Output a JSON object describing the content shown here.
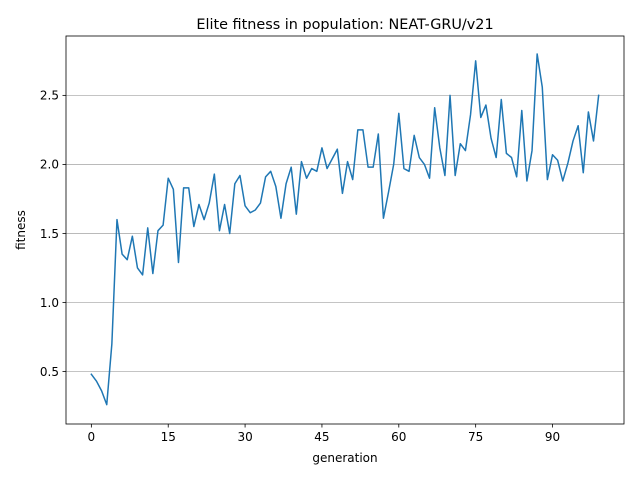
{
  "chart_data": {
    "type": "line",
    "title": "Elite fitness in population: NEAT-GRU/v21",
    "xlabel": "generation",
    "ylabel": "fitness",
    "xlim": [
      -4.95,
      103.95
    ],
    "ylim": [
      0.12,
      2.93
    ],
    "xticks": [
      0,
      15,
      30,
      45,
      60,
      75,
      90
    ],
    "yticks": [
      0.5,
      1.0,
      1.5,
      2.0,
      2.5
    ],
    "ytick_labels": [
      "0.5",
      "1.0",
      "1.5",
      "2.0",
      "2.5"
    ],
    "grid": "horizontal",
    "colors": {
      "series": "#1f77b4"
    },
    "series": [
      {
        "x": [
          0,
          1,
          2,
          3,
          4,
          5,
          6,
          7,
          8,
          9,
          10,
          11,
          12,
          13,
          14,
          15,
          16,
          17,
          18,
          19,
          20,
          21,
          22,
          23,
          24,
          25,
          26,
          27,
          28,
          29,
          30,
          31,
          32,
          33,
          34,
          35,
          36,
          37,
          38,
          39,
          40,
          41,
          42,
          43,
          44,
          45,
          46,
          47,
          48,
          49,
          50,
          51,
          52,
          53,
          54,
          55,
          56,
          57,
          58,
          59,
          60,
          61,
          62,
          63,
          64,
          65,
          66,
          67,
          68,
          69,
          70,
          71,
          72,
          73,
          74,
          75,
          76,
          77,
          78,
          79,
          80,
          81,
          82,
          83,
          84,
          85,
          86,
          87,
          88,
          89,
          90,
          91,
          92,
          93,
          94,
          95,
          96,
          97,
          98,
          99
        ],
        "values": [
          0.48,
          0.43,
          0.36,
          0.26,
          0.7,
          1.6,
          1.35,
          1.31,
          1.48,
          1.25,
          1.2,
          1.54,
          1.21,
          1.52,
          1.56,
          1.9,
          1.82,
          1.29,
          1.83,
          1.83,
          1.55,
          1.71,
          1.6,
          1.72,
          1.93,
          1.52,
          1.71,
          1.5,
          1.86,
          1.92,
          1.7,
          1.65,
          1.67,
          1.72,
          1.91,
          1.95,
          1.84,
          1.61,
          1.86,
          1.98,
          1.64,
          2.02,
          1.9,
          1.97,
          1.95,
          2.12,
          1.97,
          2.04,
          2.11,
          1.79,
          2.02,
          1.89,
          2.25,
          2.25,
          1.98,
          1.98,
          2.22,
          1.61,
          1.8,
          2.0,
          2.37,
          1.97,
          1.95,
          2.21,
          2.05,
          2.0,
          1.9,
          2.41,
          2.12,
          1.92,
          2.5,
          1.92,
          2.15,
          2.1,
          2.36,
          2.75,
          2.34,
          2.43,
          2.19,
          2.05,
          2.47,
          2.08,
          2.05,
          1.91,
          2.39,
          1.88,
          2.1,
          2.8,
          2.56,
          1.89,
          2.07,
          2.03,
          1.88,
          2.01,
          2.17,
          2.28,
          1.94,
          2.38,
          2.17,
          2.5
        ]
      }
    ]
  }
}
